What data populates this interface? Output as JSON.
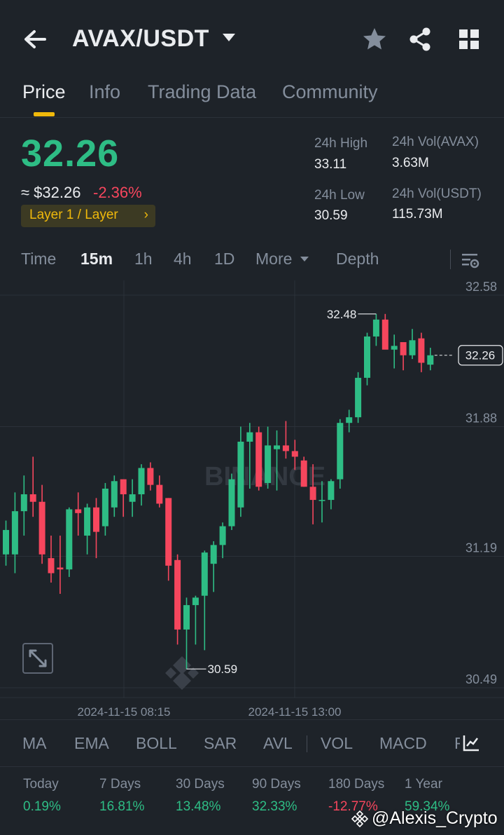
{
  "header": {
    "pair": "AVAX/USDT",
    "icons": [
      "arrow-left-icon",
      "chevron-down-icon",
      "star-icon",
      "share-icon",
      "grid-icon"
    ]
  },
  "tabs": [
    {
      "label": "Price",
      "active": true
    },
    {
      "label": "Info",
      "active": false
    },
    {
      "label": "Trading Data",
      "active": false
    },
    {
      "label": "Community",
      "active": false
    }
  ],
  "ticker": {
    "last_price": "32.26",
    "usd_equiv": "≈ $32.26",
    "change": "-2.36%",
    "tag": "Layer 1 / Layer",
    "tag_arrow": "›",
    "high_label": "24h High",
    "high": "33.11",
    "low_label": "24h Low",
    "low": "30.59",
    "vol_base_label": "24h Vol(AVAX)",
    "vol_base": "3.63M",
    "vol_quote_label": "24h Vol(USDT)",
    "vol_quote": "115.73M"
  },
  "intervals": {
    "items": [
      "Time",
      "15m",
      "1h",
      "4h",
      "1D",
      "More",
      "Depth"
    ],
    "active": "15m"
  },
  "colors": {
    "up": "#2ebd85",
    "down": "#f6465d",
    "accent": "#f0b90b",
    "background": "#1e2329"
  },
  "chart_data": {
    "type": "candlestick",
    "yticks": [
      "32.58",
      "31.88",
      "31.19",
      "30.49"
    ],
    "ylim": [
      30.49,
      32.58
    ],
    "xticks": [
      "2024-11-15 08:15",
      "2024-11-15 13:00"
    ],
    "current_price": "32.26",
    "high_marker": "32.48",
    "low_marker": "30.59",
    "watermark": "BINANCE",
    "candles": [
      {
        "o": 31.2,
        "h": 31.38,
        "l": 31.14,
        "c": 31.33
      },
      {
        "o": 31.2,
        "h": 31.53,
        "l": 31.1,
        "c": 31.43
      },
      {
        "o": 31.43,
        "h": 31.62,
        "l": 31.3,
        "c": 31.52
      },
      {
        "o": 31.52,
        "h": 31.72,
        "l": 31.4,
        "c": 31.48
      },
      {
        "o": 31.48,
        "h": 31.57,
        "l": 31.15,
        "c": 31.2
      },
      {
        "o": 31.18,
        "h": 31.3,
        "l": 31.05,
        "c": 31.1
      },
      {
        "o": 31.13,
        "h": 31.3,
        "l": 30.99,
        "c": 31.12
      },
      {
        "o": 31.12,
        "h": 31.45,
        "l": 31.08,
        "c": 31.44
      },
      {
        "o": 31.44,
        "h": 31.53,
        "l": 31.3,
        "c": 31.42
      },
      {
        "o": 31.3,
        "h": 31.47,
        "l": 31.2,
        "c": 31.45
      },
      {
        "o": 31.45,
        "h": 31.5,
        "l": 31.18,
        "c": 31.32
      },
      {
        "o": 31.35,
        "h": 31.58,
        "l": 31.3,
        "c": 31.55
      },
      {
        "o": 31.45,
        "h": 31.62,
        "l": 31.4,
        "c": 31.59
      },
      {
        "o": 31.6,
        "h": 31.6,
        "l": 31.4,
        "c": 31.52
      },
      {
        "o": 31.48,
        "h": 31.6,
        "l": 31.4,
        "c": 31.52
      },
      {
        "o": 31.52,
        "h": 31.68,
        "l": 31.46,
        "c": 31.66
      },
      {
        "o": 31.66,
        "h": 31.69,
        "l": 31.54,
        "c": 31.57
      },
      {
        "o": 31.57,
        "h": 31.62,
        "l": 31.45,
        "c": 31.47
      },
      {
        "o": 31.5,
        "h": 31.5,
        "l": 31.06,
        "c": 31.14
      },
      {
        "o": 31.17,
        "h": 31.2,
        "l": 30.72,
        "c": 30.8
      },
      {
        "o": 30.8,
        "h": 30.97,
        "l": 30.59,
        "c": 30.93
      },
      {
        "o": 30.93,
        "h": 30.98,
        "l": 30.72,
        "c": 30.97
      },
      {
        "o": 30.98,
        "h": 31.22,
        "l": 30.69,
        "c": 31.21
      },
      {
        "o": 31.15,
        "h": 31.27,
        "l": 31.0,
        "c": 31.25
      },
      {
        "o": 31.25,
        "h": 31.37,
        "l": 31.18,
        "c": 31.35
      },
      {
        "o": 31.35,
        "h": 31.63,
        "l": 31.33,
        "c": 31.6
      },
      {
        "o": 31.45,
        "h": 31.88,
        "l": 31.4,
        "c": 31.8
      },
      {
        "o": 31.8,
        "h": 31.9,
        "l": 31.55,
        "c": 31.85
      },
      {
        "o": 31.85,
        "h": 31.88,
        "l": 31.54,
        "c": 31.56
      },
      {
        "o": 31.58,
        "h": 31.88,
        "l": 31.55,
        "c": 31.78
      },
      {
        "o": 31.76,
        "h": 31.86,
        "l": 31.54,
        "c": 31.78
      },
      {
        "o": 31.78,
        "h": 31.91,
        "l": 31.71,
        "c": 31.75
      },
      {
        "o": 31.75,
        "h": 31.81,
        "l": 31.65,
        "c": 31.72
      },
      {
        "o": 31.7,
        "h": 31.72,
        "l": 31.56,
        "c": 31.56
      },
      {
        "o": 31.56,
        "h": 31.68,
        "l": 31.36,
        "c": 31.49
      },
      {
        "o": 31.49,
        "h": 31.59,
        "l": 31.37,
        "c": 31.49
      },
      {
        "o": 31.49,
        "h": 31.6,
        "l": 31.44,
        "c": 31.59
      },
      {
        "o": 31.6,
        "h": 31.92,
        "l": 31.55,
        "c": 31.9
      },
      {
        "o": 31.9,
        "h": 31.97,
        "l": 31.85,
        "c": 31.93
      },
      {
        "o": 31.93,
        "h": 32.17,
        "l": 31.9,
        "c": 32.14
      },
      {
        "o": 32.14,
        "h": 32.38,
        "l": 32.1,
        "c": 32.36
      },
      {
        "o": 32.36,
        "h": 32.48,
        "l": 32.31,
        "c": 32.45
      },
      {
        "o": 32.45,
        "h": 32.48,
        "l": 32.3,
        "c": 32.29
      },
      {
        "o": 32.29,
        "h": 32.37,
        "l": 32.19,
        "c": 32.31
      },
      {
        "o": 32.33,
        "h": 32.33,
        "l": 32.18,
        "c": 32.26
      },
      {
        "o": 32.26,
        "h": 32.4,
        "l": 32.24,
        "c": 32.34
      },
      {
        "o": 32.35,
        "h": 32.38,
        "l": 32.17,
        "c": 32.22
      },
      {
        "o": 32.21,
        "h": 32.3,
        "l": 32.18,
        "c": 32.26
      }
    ]
  },
  "indicators": [
    "MA",
    "EMA",
    "BOLL",
    "SAR",
    "AVL",
    "VOL",
    "MACD",
    "R"
  ],
  "performance": [
    {
      "label": "Today",
      "value": "0.19%",
      "dir": "pos"
    },
    {
      "label": "7 Days",
      "value": "16.81%",
      "dir": "pos"
    },
    {
      "label": "30 Days",
      "value": "13.48%",
      "dir": "pos"
    },
    {
      "label": "90 Days",
      "value": "32.33%",
      "dir": "pos"
    },
    {
      "label": "180 Days",
      "value": "-12.77%",
      "dir": "neg"
    },
    {
      "label": "1 Year",
      "value": "59.34%",
      "dir": "pos"
    }
  ],
  "watermark": "@Alexis_Crypto"
}
